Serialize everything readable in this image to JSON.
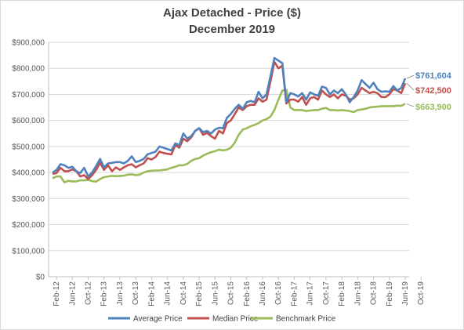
{
  "chart_data": {
    "type": "line",
    "title": "Ajax Detached - Price ($)",
    "subtitle": "December 2019",
    "ylim": [
      0,
      900000
    ],
    "y_ticks": [
      "$0",
      "$100,000",
      "$200,000",
      "$300,000",
      "$400,000",
      "$500,000",
      "$600,000",
      "$700,000",
      "$800,000",
      "$900,000"
    ],
    "x_tick_labels": [
      "Feb-12",
      "Jun-12",
      "Oct-12",
      "Feb-13",
      "Jun-13",
      "Oct-13",
      "Feb-14",
      "Jun-14",
      "Oct-14",
      "Feb-15",
      "Jun-15",
      "Oct-15",
      "Feb-16",
      "Jun-16",
      "Oct-16",
      "Feb-17",
      "Jun-17",
      "Oct-17",
      "Feb-18",
      "Jun-18",
      "Oct-18",
      "Feb-19",
      "Jun-19",
      "Oct-19"
    ],
    "x_start": "Jan-12",
    "x_end": "Dec-19",
    "grid": true,
    "legend_position": "bottom",
    "series": [
      {
        "name": "Average Price",
        "color": "#4f81bd",
        "end_label": "$761,604",
        "values": [
          400000,
          410000,
          432000,
          428000,
          418000,
          422000,
          405000,
          398000,
          418000,
          385000,
          400000,
          425000,
          452000,
          420000,
          435000,
          437000,
          440000,
          440000,
          435000,
          445000,
          462000,
          440000,
          445000,
          452000,
          470000,
          475000,
          480000,
          500000,
          495000,
          490000,
          485000,
          512000,
          505000,
          550000,
          530000,
          540000,
          560000,
          570000,
          555000,
          560000,
          550000,
          565000,
          572000,
          570000,
          610000,
          625000,
          645000,
          660000,
          645000,
          670000,
          675000,
          670000,
          710000,
          685000,
          700000,
          770000,
          840000,
          830000,
          820000,
          670000,
          705000,
          700000,
          692000,
          705000,
          680000,
          708000,
          700000,
          695000,
          730000,
          725000,
          700000,
          715000,
          705000,
          720000,
          700000,
          670000,
          690000,
          715000,
          755000,
          740000,
          725000,
          745000,
          720000,
          710000,
          712000,
          710000,
          732000,
          715000,
          725000,
          761604
        ]
      },
      {
        "name": "Median Price",
        "color": "#c0504d",
        "end_label": "$742,500",
        "values": [
          395000,
          398000,
          418000,
          405000,
          405000,
          412000,
          405000,
          385000,
          390000,
          375000,
          390000,
          410000,
          438000,
          410000,
          428000,
          405000,
          420000,
          410000,
          420000,
          428000,
          432000,
          420000,
          428000,
          435000,
          455000,
          450000,
          460000,
          480000,
          475000,
          472000,
          470000,
          505000,
          495000,
          530000,
          520000,
          535000,
          560000,
          570000,
          545000,
          552000,
          540000,
          530000,
          560000,
          550000,
          590000,
          600000,
          625000,
          650000,
          640000,
          655000,
          660000,
          660000,
          685000,
          672000,
          680000,
          750000,
          825000,
          800000,
          810000,
          665000,
          680000,
          680000,
          672000,
          690000,
          660000,
          685000,
          690000,
          680000,
          715000,
          700000,
          690000,
          700000,
          685000,
          700000,
          695000,
          680000,
          685000,
          700000,
          725000,
          715000,
          705000,
          710000,
          705000,
          690000,
          690000,
          700000,
          720000,
          715000,
          705000,
          742500
        ]
      },
      {
        "name": "Benchmark Price",
        "color": "#9bbb59",
        "end_label": "$663,900",
        "values": [
          378000,
          385000,
          385000,
          362000,
          368000,
          366000,
          366000,
          370000,
          370000,
          372000,
          367000,
          365000,
          375000,
          382000,
          385000,
          387000,
          386000,
          387000,
          388000,
          392000,
          393000,
          390000,
          392000,
          400000,
          405000,
          407000,
          408000,
          408000,
          410000,
          412000,
          418000,
          422000,
          428000,
          428000,
          433000,
          445000,
          452000,
          455000,
          465000,
          472000,
          478000,
          482000,
          488000,
          485000,
          488000,
          495000,
          515000,
          545000,
          565000,
          570000,
          578000,
          583000,
          590000,
          600000,
          605000,
          615000,
          640000,
          680000,
          715000,
          718000,
          650000,
          640000,
          640000,
          640000,
          636000,
          638000,
          640000,
          640000,
          645000,
          648000,
          640000,
          640000,
          638000,
          640000,
          638000,
          636000,
          632000,
          640000,
          642000,
          645000,
          650000,
          652000,
          653000,
          655000,
          655000,
          655000,
          655000,
          657000,
          656000,
          663900
        ]
      }
    ]
  }
}
